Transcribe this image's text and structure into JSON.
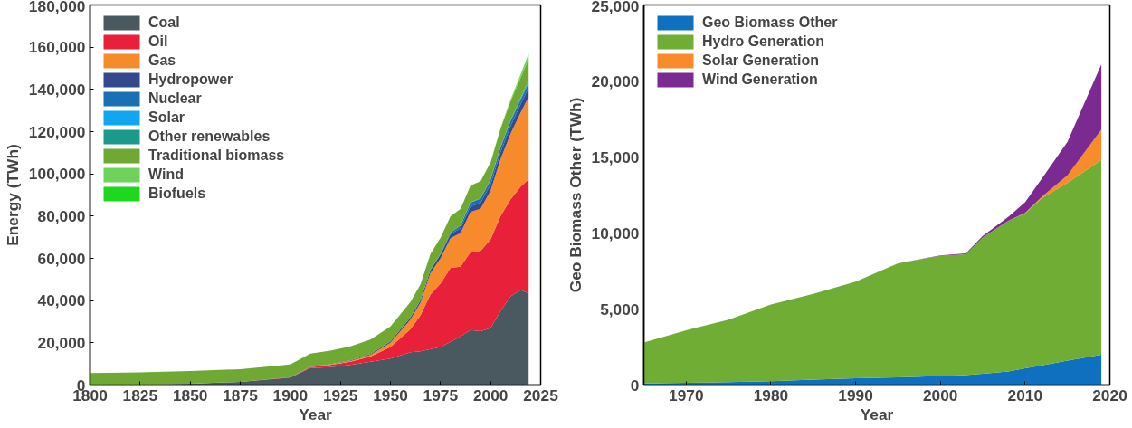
{
  "chart_data": [
    {
      "type": "area",
      "stacked": true,
      "xlabel": "Year",
      "ylabel": "Energy (TWh)",
      "xlim": [
        1800,
        2025
      ],
      "ylim": [
        0,
        180000
      ],
      "xticks": [
        1800,
        1825,
        1850,
        1875,
        1900,
        1925,
        1950,
        1975,
        2000,
        2025
      ],
      "yticks": [
        {
          "value": 0,
          "label": "0"
        },
        {
          "value": 20000,
          "label": "20,000"
        },
        {
          "value": 40000,
          "label": "40,000"
        },
        {
          "value": 60000,
          "label": "60,000"
        },
        {
          "value": 80000,
          "label": "80,000"
        },
        {
          "value": 100000,
          "label": "100,000"
        },
        {
          "value": 120000,
          "label": "120,000"
        },
        {
          "value": 140000,
          "label": "140,000"
        },
        {
          "value": 160000,
          "label": "160,000"
        },
        {
          "value": 180000,
          "label": "180,000"
        }
      ],
      "grid": false,
      "legend": "top left",
      "x": [
        1800,
        1825,
        1850,
        1875,
        1900,
        1910,
        1920,
        1930,
        1940,
        1950,
        1960,
        1965,
        1970,
        1975,
        1980,
        1985,
        1990,
        1995,
        2000,
        2005,
        2010,
        2015,
        2019
      ],
      "series": [
        {
          "name": "Coal",
          "color": "#4a5860",
          "values": [
            100,
            200,
            600,
            1500,
            3500,
            8000,
            8500,
            9500,
            11000,
            12500,
            15500,
            16000,
            17000,
            18000,
            20500,
            23000,
            26000,
            25500,
            27000,
            35000,
            42000,
            45000,
            43500
          ]
        },
        {
          "name": "Oil",
          "color": "#e8203a",
          "values": [
            0,
            0,
            0,
            0,
            200,
            500,
            1000,
            1500,
            2500,
            5500,
            11000,
            17000,
            26000,
            30000,
            35000,
            33000,
            37000,
            38000,
            42000,
            45000,
            46000,
            49000,
            54000
          ]
        },
        {
          "name": "Gas",
          "color": "#f78a2a",
          "values": [
            0,
            0,
            0,
            0,
            50,
            100,
            200,
            400,
            800,
            2000,
            4500,
            6000,
            10000,
            12000,
            14000,
            16000,
            19000,
            20000,
            23000,
            27000,
            31000,
            35000,
            39000
          ]
        },
        {
          "name": "Hydropower",
          "color": "#34488e",
          "values": [
            0,
            0,
            0,
            0,
            50,
            100,
            200,
            300,
            400,
            700,
            1000,
            1200,
            1500,
            1800,
            2000,
            2300,
            2600,
            2800,
            3000,
            3300,
            3700,
            4000,
            4300
          ]
        },
        {
          "name": "Nuclear",
          "color": "#1a6fb5",
          "values": [
            0,
            0,
            0,
            0,
            0,
            0,
            0,
            0,
            0,
            0,
            0,
            50,
            100,
            300,
            700,
            1200,
            1800,
            2000,
            2200,
            2300,
            2300,
            2200,
            2300
          ]
        },
        {
          "name": "Solar",
          "color": "#12a5f0",
          "values": [
            0,
            0,
            0,
            0,
            0,
            0,
            0,
            0,
            0,
            0,
            0,
            0,
            0,
            0,
            0,
            0,
            0,
            0,
            0,
            0,
            10,
            200,
            600
          ]
        },
        {
          "name": "Other renewables",
          "color": "#1a9a8a",
          "values": [
            0,
            0,
            0,
            0,
            0,
            0,
            0,
            0,
            0,
            0,
            0,
            0,
            0,
            0,
            50,
            100,
            150,
            200,
            250,
            300,
            450,
            600,
            800
          ]
        },
        {
          "name": "Traditional biomass",
          "color": "#6fa832",
          "values": [
            5600,
            5800,
            6000,
            6000,
            6000,
            6200,
            6400,
            6600,
            6800,
            7000,
            7300,
            7400,
            7500,
            7600,
            7700,
            7800,
            7900,
            8000,
            8000,
            8500,
            9000,
            9500,
            10000
          ]
        },
        {
          "name": "Wind",
          "color": "#6dd35a",
          "values": [
            0,
            0,
            0,
            0,
            0,
            0,
            0,
            0,
            0,
            0,
            0,
            0,
            0,
            0,
            0,
            0,
            0,
            0,
            50,
            150,
            500,
            1200,
            2000
          ]
        },
        {
          "name": "Biofuels",
          "color": "#1ed81e",
          "values": [
            0,
            0,
            0,
            0,
            0,
            0,
            0,
            0,
            0,
            0,
            0,
            0,
            0,
            0,
            10,
            30,
            50,
            60,
            80,
            150,
            300,
            400,
            500
          ]
        }
      ]
    },
    {
      "type": "area",
      "stacked": true,
      "xlabel": "Year",
      "ylabel": "Geo Biomass Other (TWh)",
      "xlim": [
        1965,
        2020
      ],
      "ylim": [
        0,
        25000
      ],
      "xticks": [
        1970,
        1980,
        1990,
        2000,
        2010,
        2020
      ],
      "yticks": [
        {
          "value": 0,
          "label": "0"
        },
        {
          "value": 5000,
          "label": "5,000"
        },
        {
          "value": 10000,
          "label": "10,000"
        },
        {
          "value": 15000,
          "label": "15,000"
        },
        {
          "value": 20000,
          "label": "20,000"
        },
        {
          "value": 25000,
          "label": "25,000"
        }
      ],
      "grid": false,
      "legend": "top left",
      "x": [
        1965,
        1970,
        1975,
        1980,
        1985,
        1990,
        1995,
        2000,
        2003,
        2005,
        2008,
        2010,
        2012,
        2015,
        2019
      ],
      "series": [
        {
          "name": "Geo Biomass Other",
          "color": "#1070c0",
          "values": [
            100,
            150,
            200,
            250,
            350,
            450,
            500,
            600,
            650,
            750,
            900,
            1100,
            1300,
            1600,
            2000
          ]
        },
        {
          "name": "Hydro Generation",
          "color": "#70ad35",
          "values": [
            2700,
            3450,
            4100,
            5050,
            5650,
            6350,
            7500,
            7900,
            7950,
            8950,
            9900,
            10200,
            11000,
            11700,
            12800
          ]
        },
        {
          "name": "Solar Generation",
          "color": "#f88b2a",
          "values": [
            0,
            0,
            0,
            0,
            0,
            0,
            0,
            0,
            0,
            0,
            10,
            30,
            100,
            500,
            2000
          ]
        },
        {
          "name": "Wind Generation",
          "color": "#7a2a90",
          "values": [
            0,
            0,
            0,
            0,
            0,
            0,
            10,
            30,
            60,
            100,
            250,
            700,
            1200,
            2200,
            4300
          ]
        }
      ]
    }
  ]
}
